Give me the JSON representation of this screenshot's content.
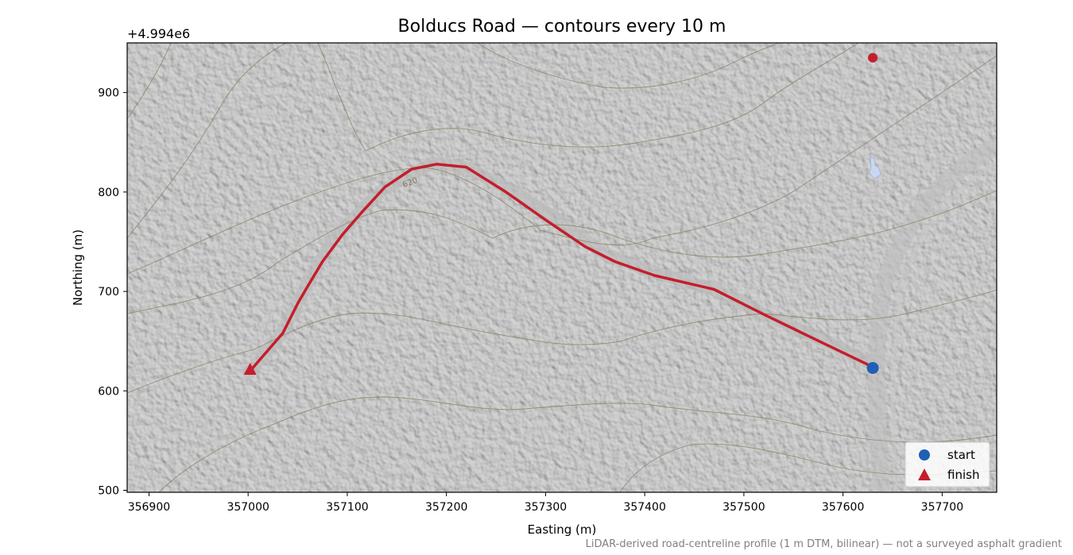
{
  "title": "Bolducs Road — contours every 10 m",
  "axes": {
    "xlabel": "Easting (m)",
    "ylabel": "Northing (m)",
    "y_offset_text": "+4.994e6",
    "x_ticks": [
      "356900",
      "357000",
      "357100",
      "357200",
      "357300",
      "357400",
      "357500",
      "357600",
      "357700"
    ],
    "y_ticks": [
      "500",
      "600",
      "700",
      "800",
      "900"
    ]
  },
  "legend": {
    "placement": "lower-right",
    "start_label": "start",
    "finish_label": "finish"
  },
  "contour_label": "620",
  "footnote": "LiDAR-derived road-centreline profile (1 m DTM, bilinear) — not a surveyed asphalt gradient",
  "colors": {
    "route": "#c41e2c",
    "start_marker": "#1f5fb5",
    "finish_marker": "#c41e2c",
    "contour": "#8a8466",
    "hillshade": "#a9a9a9",
    "water": "#c8d8f0"
  },
  "chart_data": {
    "type": "map-route",
    "x_offset": 0,
    "y_offset": 4994000,
    "xlim": [
      356878,
      357755
    ],
    "ylim": [
      498,
      950
    ],
    "route": [
      [
        357630,
        624
      ],
      [
        357580,
        648
      ],
      [
        357520,
        677
      ],
      [
        357470,
        702
      ],
      [
        357410,
        716
      ],
      [
        357370,
        730
      ],
      [
        357340,
        745
      ],
      [
        357300,
        772
      ],
      [
        357260,
        800
      ],
      [
        357220,
        825
      ],
      [
        357190,
        828
      ],
      [
        357165,
        823
      ],
      [
        357138,
        805
      ],
      [
        357115,
        780
      ],
      [
        357095,
        757
      ],
      [
        357075,
        730
      ],
      [
        357060,
        705
      ],
      [
        357050,
        688
      ],
      [
        357035,
        658
      ],
      [
        357015,
        635
      ],
      [
        357002,
        620
      ]
    ],
    "start": {
      "x": 357630,
      "y": 623
    },
    "finish": {
      "x": 357002,
      "y": 621
    },
    "extra_point": {
      "x": 357630,
      "y": 935
    }
  }
}
